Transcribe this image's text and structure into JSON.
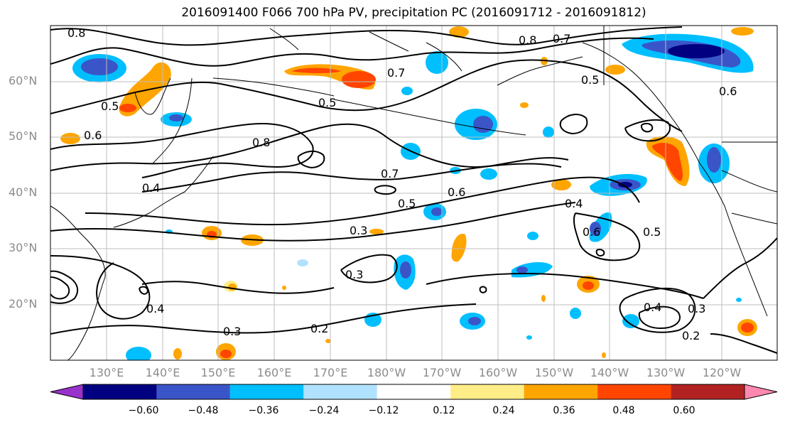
{
  "title": "2016091400 F066 700 hPa PV, precipitation PC (2016091712 - 2016091812)",
  "axes": {
    "lat_labels": [
      "60°N",
      "50°N",
      "40°N",
      "30°N",
      "20°N"
    ],
    "lon_labels": [
      "130°E",
      "140°E",
      "150°E",
      "160°E",
      "170°E",
      "180°W",
      "170°W",
      "160°W",
      "150°W",
      "140°W",
      "130°W",
      "120°W"
    ]
  },
  "contour_labels": [
    "0.8",
    "0.7",
    "0.6",
    "0.5",
    "0.4",
    "0.3",
    "0.2"
  ],
  "colorbar": {
    "ticks": [
      "−0.60",
      "−0.48",
      "−0.36",
      "−0.24",
      "−0.12",
      "0.12",
      "0.24",
      "0.36",
      "0.48",
      "0.60"
    ],
    "colors": [
      "#9932cc",
      "#000080",
      "#3a55c8",
      "#00bfff",
      "#b0e2ff",
      "#ffffff",
      "#ffee88",
      "#ffa500",
      "#ff4500",
      "#b22222",
      "#ff88b0"
    ]
  },
  "chart_data": {
    "type": "heatmap",
    "title": "2016091400 F066 700 hPa PV, precipitation PC (2016091712 - 2016091812)",
    "lat_range": [
      "60°N",
      "20°N"
    ],
    "lon_range": [
      "130°E",
      "120°W"
    ],
    "contour_levels": [
      0.2,
      0.3,
      0.4,
      0.5,
      0.6,
      0.7,
      0.8
    ],
    "colorbar_levels": [
      -0.6,
      -0.48,
      -0.36,
      -0.24,
      -0.12,
      0.12,
      0.24,
      0.36,
      0.48,
      0.6
    ],
    "grid": true
  }
}
